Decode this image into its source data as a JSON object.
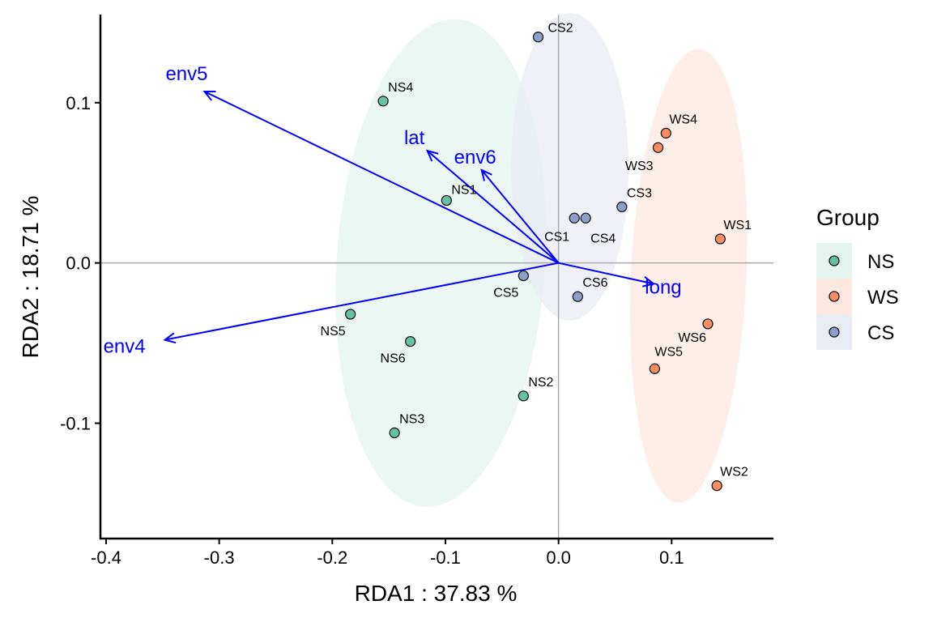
{
  "chart_data": {
    "type": "scatter",
    "xlabel": "RDA1 :  37.83 %",
    "ylabel": "RDA2 :  18.71 %",
    "xlim": [
      -0.405,
      0.19
    ],
    "ylim": [
      -0.172,
      0.155
    ],
    "x_ticks": [
      {
        "value": -0.4,
        "label": "-0.4"
      },
      {
        "value": -0.3,
        "label": "-0.3"
      },
      {
        "value": -0.2,
        "label": "-0.2"
      },
      {
        "value": -0.1,
        "label": "-0.1"
      },
      {
        "value": 0.0,
        "label": "0.0"
      },
      {
        "value": 0.1,
        "label": "0.1"
      }
    ],
    "y_ticks": [
      {
        "value": 0.1,
        "label": "0.1"
      },
      {
        "value": 0.0,
        "label": "0.0"
      },
      {
        "value": -0.1,
        "label": "-0.1"
      }
    ],
    "legend": {
      "title": "Group",
      "position": "right",
      "entries": [
        {
          "group": "NS",
          "label": "NS"
        },
        {
          "group": "WS",
          "label": "WS"
        },
        {
          "group": "CS",
          "label": "CS"
        }
      ]
    },
    "groups": [
      {
        "name": "NS",
        "color": "#66c2a5",
        "fill": "#e6f4ef"
      },
      {
        "name": "WS",
        "color": "#fc8d62",
        "fill": "#fde8e1"
      },
      {
        "name": "CS",
        "color": "#8da0cb",
        "fill": "#eaecf4"
      }
    ],
    "ellipses": [
      {
        "group": "NS",
        "center": [
          -0.104,
          -0.0
        ],
        "semi_major": 0.153,
        "semi_minor": 0.092,
        "angle_deg": 83
      },
      {
        "group": "WS",
        "center": [
          0.115,
          -0.008
        ],
        "semi_major": 0.142,
        "semi_minor": 0.051,
        "angle_deg": 86
      },
      {
        "group": "CS",
        "center": [
          0.01,
          0.06
        ],
        "semi_major": 0.096,
        "semi_minor": 0.052,
        "angle_deg": 90
      }
    ],
    "points": [
      {
        "label": "NS1",
        "group": "NS",
        "x": -0.099,
        "y": 0.039
      },
      {
        "label": "NS2",
        "group": "NS",
        "x": -0.031,
        "y": -0.083
      },
      {
        "label": "NS3",
        "group": "NS",
        "x": -0.145,
        "y": -0.106
      },
      {
        "label": "NS4",
        "group": "NS",
        "x": -0.155,
        "y": 0.101
      },
      {
        "label": "NS5",
        "group": "NS",
        "x": -0.184,
        "y": -0.032
      },
      {
        "label": "NS6",
        "group": "NS",
        "x": -0.131,
        "y": -0.049
      },
      {
        "label": "WS1",
        "group": "WS",
        "x": 0.143,
        "y": 0.015
      },
      {
        "label": "WS2",
        "group": "WS",
        "x": 0.14,
        "y": -0.139
      },
      {
        "label": "WS3",
        "group": "WS",
        "x": 0.088,
        "y": 0.072
      },
      {
        "label": "WS4",
        "group": "WS",
        "x": 0.095,
        "y": 0.081
      },
      {
        "label": "WS5",
        "group": "WS",
        "x": 0.085,
        "y": -0.066
      },
      {
        "label": "WS6",
        "group": "WS",
        "x": 0.132,
        "y": -0.038
      },
      {
        "label": "CS1",
        "group": "CS",
        "x": 0.014,
        "y": 0.028
      },
      {
        "label": "CS2",
        "group": "CS",
        "x": -0.018,
        "y": 0.141
      },
      {
        "label": "CS3",
        "group": "CS",
        "x": 0.056,
        "y": 0.035
      },
      {
        "label": "CS4",
        "group": "CS",
        "x": 0.024,
        "y": 0.028
      },
      {
        "label": "CS5",
        "group": "CS",
        "x": -0.031,
        "y": -0.008
      },
      {
        "label": "CS6",
        "group": "CS",
        "x": 0.017,
        "y": -0.021
      }
    ],
    "vectors": [
      {
        "label": "env5",
        "x": -0.313,
        "y": 0.107
      },
      {
        "label": "lat",
        "x": -0.116,
        "y": 0.07
      },
      {
        "label": "env6",
        "x": -0.068,
        "y": 0.058
      },
      {
        "label": "env4",
        "x": -0.348,
        "y": -0.048
      },
      {
        "label": "long",
        "x": 0.084,
        "y": -0.013
      }
    ],
    "vector_color": "#0000ff",
    "reference_lines": {
      "x": 0,
      "y": 0,
      "color": "#aaaaaa"
    }
  }
}
